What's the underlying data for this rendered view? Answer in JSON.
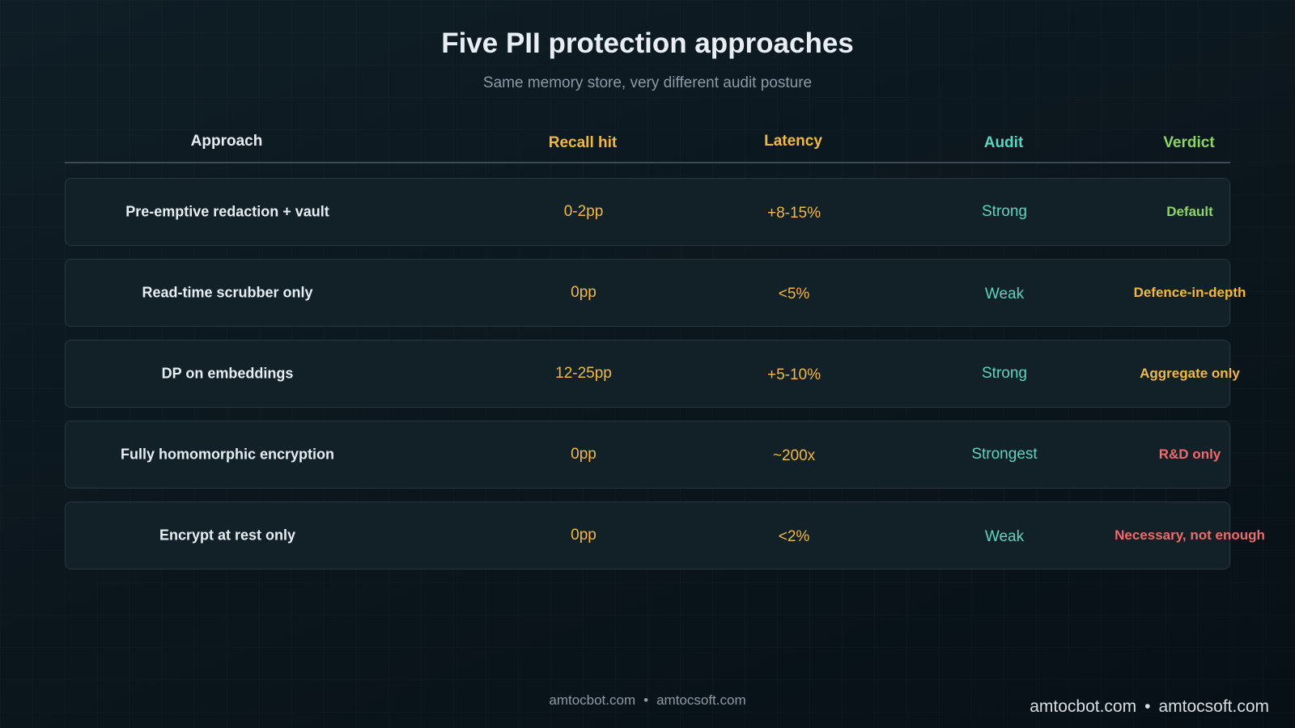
{
  "title": "Five PII protection approaches",
  "subtitle": "Same memory store, very different audit posture",
  "columns": [
    {
      "label": "Approach",
      "color": "#e6edf3"
    },
    {
      "label": "Recall hit",
      "color": "#f2b845"
    },
    {
      "label": "Latency",
      "color": "#f2b845"
    },
    {
      "label": "Audit",
      "color": "#5fd3c2"
    },
    {
      "label": "Verdict",
      "color": "#8fd46a"
    }
  ],
  "rows": [
    {
      "approach": "Pre-emptive redaction + vault",
      "recall": "0-2pp",
      "latency": "+8-15%",
      "audit": "Strong",
      "verdict": "Default",
      "verdict_color": "#8fd46a"
    },
    {
      "approach": "Read-time scrubber only",
      "recall": "0pp",
      "latency": "<5%",
      "audit": "Weak",
      "verdict": "Defence-in-depth",
      "verdict_color": "#f2b845"
    },
    {
      "approach": "DP on embeddings",
      "recall": "12-25pp",
      "latency": "+5-10%",
      "audit": "Strong",
      "verdict": "Aggregate only",
      "verdict_color": "#f2b845"
    },
    {
      "approach": "Fully homomorphic encryption",
      "recall": "0pp",
      "latency": "~200x",
      "audit": "Strongest",
      "verdict": "R&D only",
      "verdict_color": "#ef6b6b"
    },
    {
      "approach": "Encrypt at rest only",
      "recall": "0pp",
      "latency": "<2%",
      "audit": "Weak",
      "verdict": "Necessary, not enough",
      "verdict_color": "#ef6b6b"
    }
  ],
  "footer": {
    "site1": "amtocbot.com",
    "separator": "•",
    "site2": "amtocsoft.com"
  }
}
